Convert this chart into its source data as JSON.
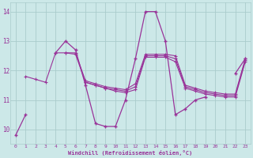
{
  "xlabel": "Windchill (Refroidissement éolien,°C)",
  "background_color": "#cce8e8",
  "grid_color": "#aacccc",
  "line_color": "#993399",
  "x_values": [
    0,
    1,
    2,
    3,
    4,
    5,
    6,
    7,
    8,
    9,
    10,
    11,
    12,
    13,
    14,
    15,
    16,
    17,
    18,
    19,
    20,
    21,
    22,
    23
  ],
  "series": [
    [
      9.8,
      10.5,
      null,
      null,
      12.6,
      13.0,
      12.7,
      11.5,
      10.2,
      10.1,
      10.1,
      11.0,
      12.4,
      14.0,
      14.0,
      13.0,
      10.5,
      10.7,
      11.0,
      11.1,
      null,
      null,
      11.9,
      12.4
    ],
    [
      null,
      11.8,
      11.7,
      11.6,
      12.6,
      12.6,
      12.6,
      11.65,
      11.55,
      11.45,
      11.4,
      11.35,
      11.55,
      12.55,
      12.55,
      12.55,
      12.5,
      11.5,
      11.4,
      11.3,
      11.25,
      11.2,
      11.2,
      12.4
    ],
    [
      null,
      null,
      null,
      null,
      null,
      12.6,
      12.55,
      11.6,
      11.5,
      11.4,
      11.35,
      11.3,
      11.45,
      12.5,
      12.5,
      12.5,
      12.4,
      11.45,
      11.35,
      11.25,
      11.2,
      11.15,
      11.15,
      12.35
    ],
    [
      null,
      null,
      null,
      null,
      null,
      null,
      null,
      11.6,
      11.5,
      11.4,
      11.3,
      11.25,
      11.35,
      12.45,
      12.45,
      12.45,
      12.3,
      11.4,
      11.3,
      11.2,
      11.15,
      11.1,
      11.1,
      12.3
    ]
  ],
  "ylim": [
    9.5,
    14.3
  ],
  "yticks": [
    10,
    11,
    12,
    13,
    14
  ],
  "xticks": [
    0,
    1,
    2,
    3,
    4,
    5,
    6,
    7,
    8,
    9,
    10,
    11,
    12,
    13,
    14,
    15,
    16,
    17,
    18,
    19,
    20,
    21,
    22,
    23
  ]
}
